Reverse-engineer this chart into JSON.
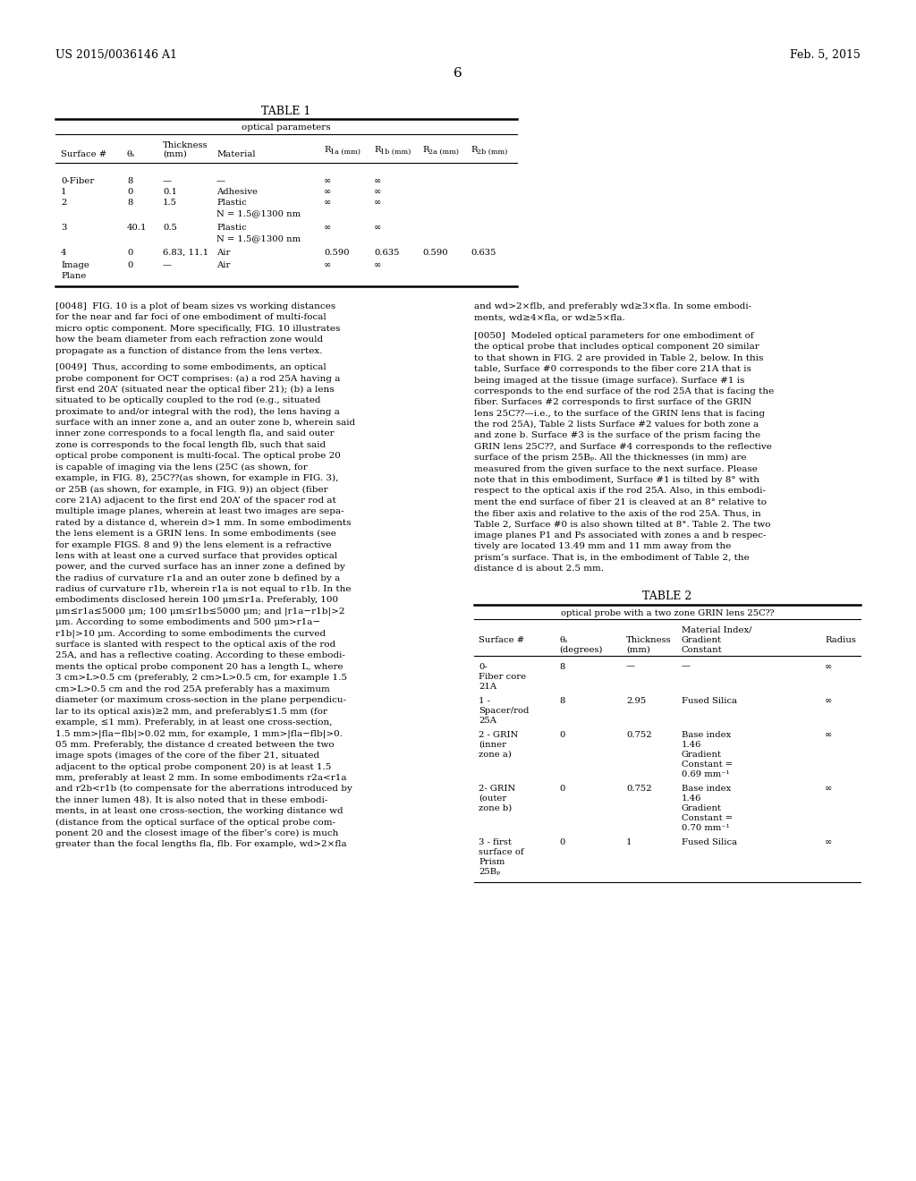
{
  "bg_color": "#ffffff",
  "header_left": "US 2015/0036146 A1",
  "header_right": "Feb. 5, 2015",
  "page_number": "6"
}
